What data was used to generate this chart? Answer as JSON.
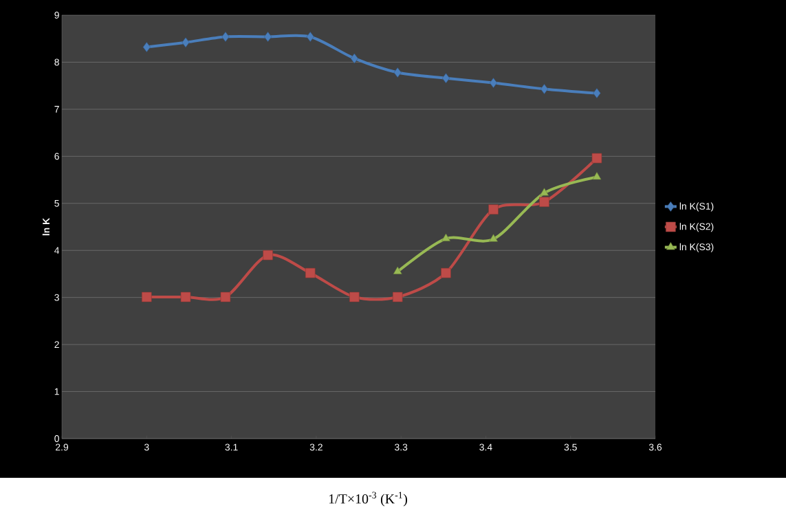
{
  "chart_data": {
    "type": "line",
    "xlabel": "1/T×10$^{-3}$ (K$^{-1}$)",
    "ylabel": "ln K",
    "xlim": [
      2.9,
      3.6
    ],
    "xticks": [
      2.9,
      3,
      3.1,
      3.2,
      3.3,
      3.4,
      3.5,
      3.6
    ],
    "ylim": [
      0,
      9
    ],
    "yticks": [
      0,
      1,
      2,
      3,
      4,
      5,
      6,
      7,
      8,
      9
    ],
    "grid": "y",
    "legend": "right",
    "series": [
      {
        "name": "ln K(S1)",
        "color": "#4a7ebb",
        "marker": "diamond",
        "x": [
          3.0,
          3.046,
          3.093,
          3.143,
          3.193,
          3.245,
          3.296,
          3.353,
          3.409,
          3.469,
          3.531
        ],
        "values": [
          8.32,
          8.42,
          8.54,
          8.54,
          8.54,
          8.08,
          7.78,
          7.66,
          7.56,
          7.43,
          7.34
        ]
      },
      {
        "name": "ln K(S2)",
        "color": "#be4b48",
        "marker": "square",
        "x": [
          3.0,
          3.046,
          3.093,
          3.143,
          3.193,
          3.245,
          3.296,
          3.353,
          3.409,
          3.469,
          3.531
        ],
        "values": [
          3.01,
          3.01,
          3.01,
          3.9,
          3.52,
          3.01,
          3.01,
          3.52,
          4.87,
          5.03,
          5.96
        ]
      },
      {
        "name": "ln K(S3)",
        "color": "#98b954",
        "marker": "triangle",
        "x": [
          3.296,
          3.353,
          3.409,
          3.469,
          3.531
        ],
        "values": [
          3.55,
          4.25,
          4.24,
          5.22,
          5.56
        ]
      }
    ]
  }
}
